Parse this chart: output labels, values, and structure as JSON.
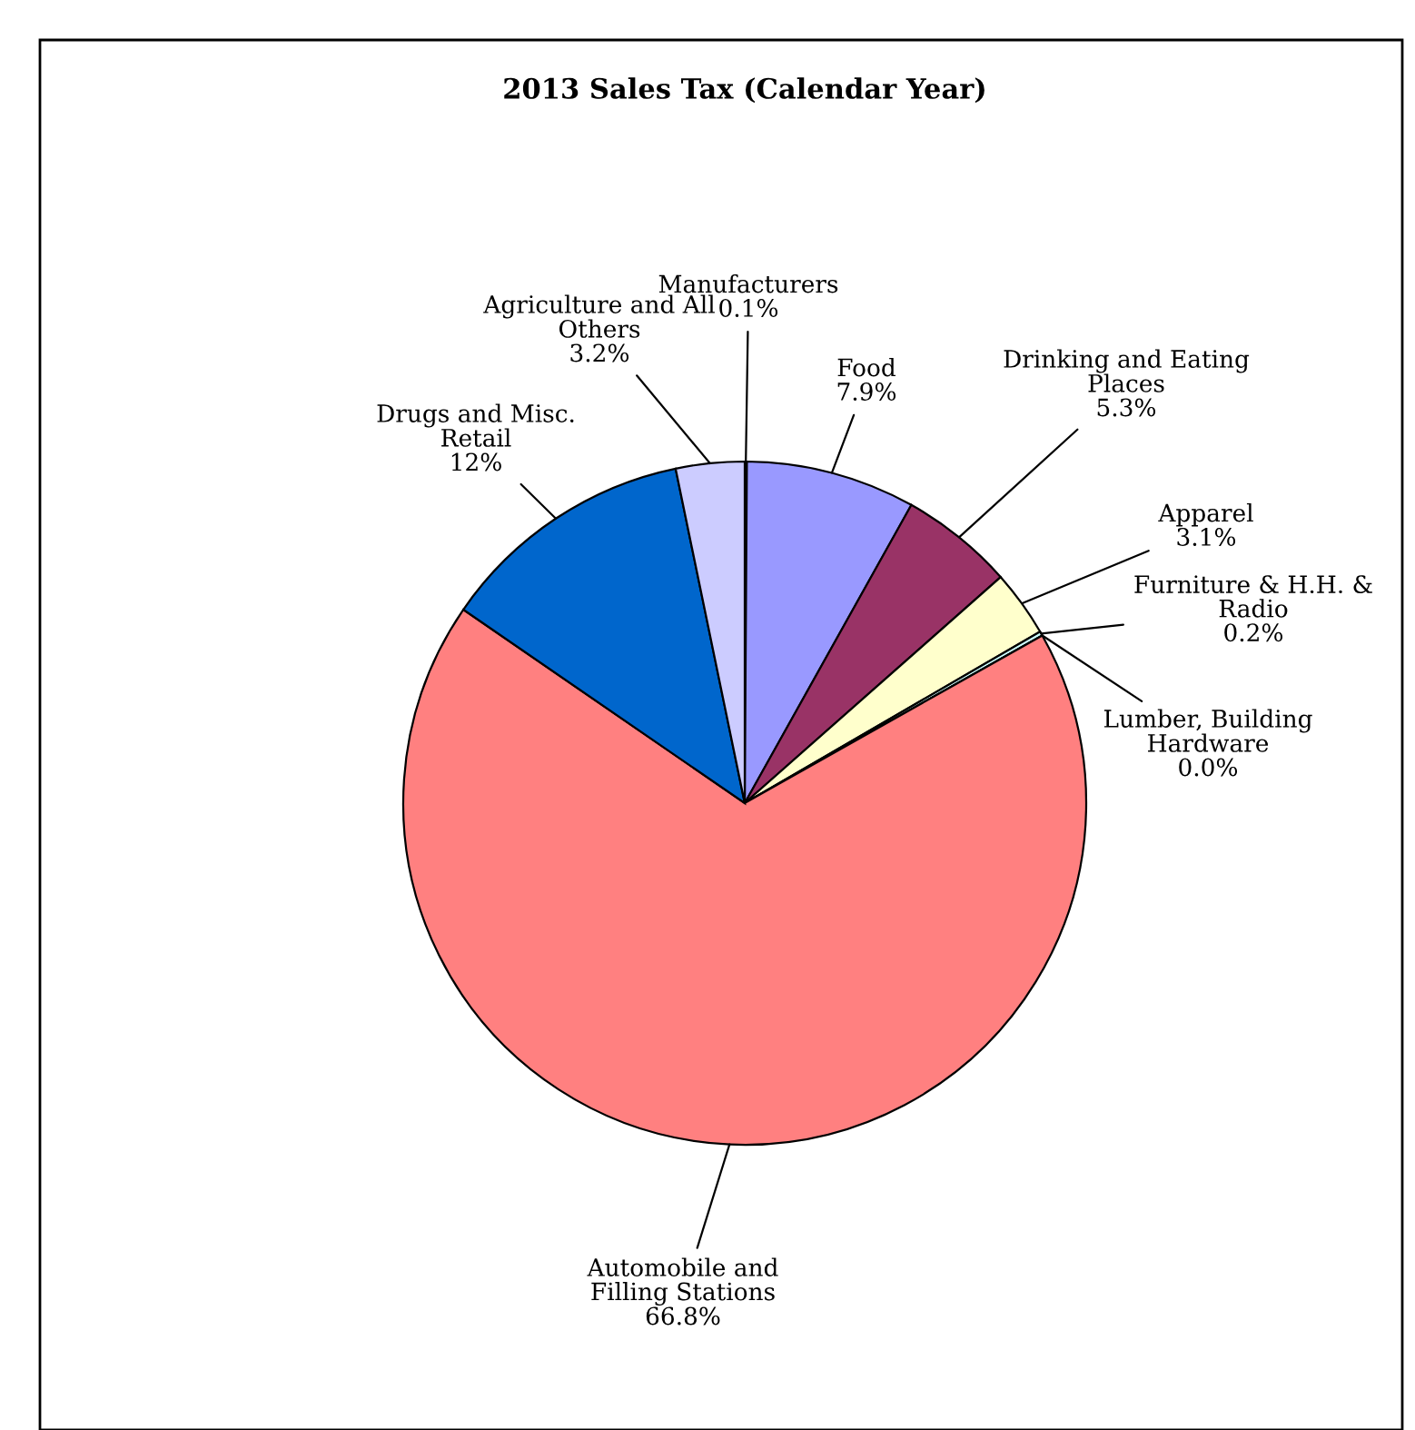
{
  "chart_data": {
    "type": "pie",
    "title": "2013 Sales Tax (Calendar Year)",
    "categories": [
      "Manufacturers",
      "Food",
      "Drinking and Eating Places",
      "Apparel",
      "Furniture & H.H. & Radio",
      "Lumber, Building Hardware",
      "Automobile and Filling Stations",
      "Drugs and Misc. Retail",
      "Agriculture and All Others"
    ],
    "values": [
      0.1,
      7.9,
      5.3,
      3.1,
      0.2,
      0.0,
      66.8,
      12,
      3.2
    ],
    "value_labels": [
      "0.1%",
      "7.9%",
      "5.3%",
      "3.1%",
      "0.2%",
      "0.0%",
      "66.8%",
      "12%",
      "3.2%"
    ],
    "colors": [
      "#000080",
      "#9999ff",
      "#993366",
      "#ffffcc",
      "#ccffff",
      "#ffffff",
      "#ff8080",
      "#0066cc",
      "#ccccff"
    ]
  }
}
